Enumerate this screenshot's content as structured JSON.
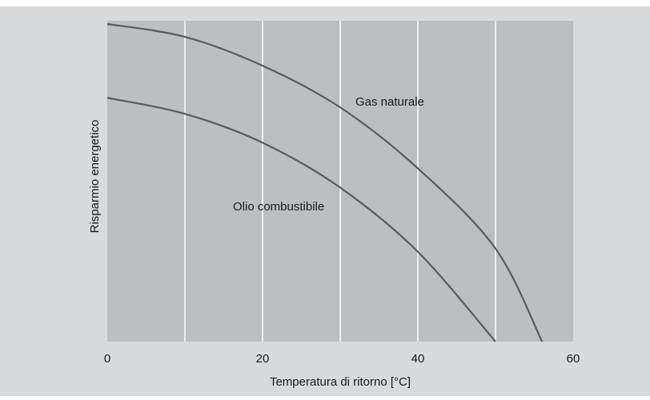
{
  "chart_data": {
    "type": "line",
    "title": "",
    "xlabel": "Temperatura di ritorno [°C]",
    "ylabel": "Risparmio energetico",
    "xlim": [
      0,
      60
    ],
    "x_ticks": [
      "0",
      "20",
      "40",
      "60"
    ],
    "x_gridlines": [
      10,
      20,
      30,
      40,
      50
    ],
    "y_ticks": [],
    "ylim": [
      0,
      1
    ],
    "grid": "vertical",
    "series": [
      {
        "name": "Gas naturale",
        "x": [
          0,
          10,
          20,
          30,
          40,
          50,
          56
        ],
        "y": [
          0.99,
          0.95,
          0.86,
          0.73,
          0.54,
          0.29,
          0.0
        ]
      },
      {
        "name": "Olio combustibile",
        "x": [
          0,
          10,
          20,
          30,
          40,
          50
        ],
        "y": [
          0.76,
          0.71,
          0.62,
          0.48,
          0.28,
          0.0
        ]
      }
    ],
    "colors": {
      "plot_background": "#bdbec0",
      "figure_background": "#d9dadb",
      "grid": "#ffffff",
      "line": "#5a5a5c"
    }
  }
}
